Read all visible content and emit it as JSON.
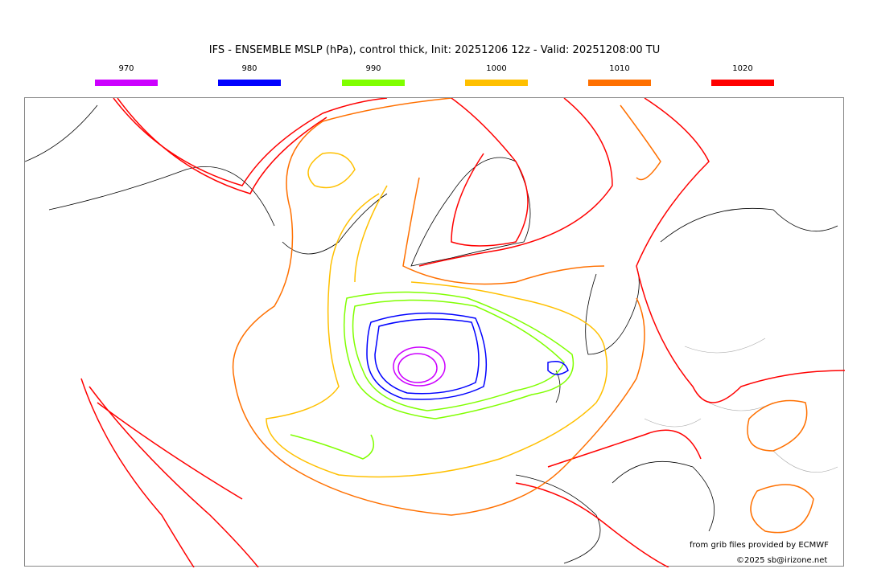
{
  "title": "IFS - ENSEMBLE MSLP (hPa), control thick, Init: 20251206 12z - Valid: 20251208:00 TU",
  "legend": [
    {
      "label": "970",
      "color": "#cc00ff"
    },
    {
      "label": "980",
      "color": "#0000ff"
    },
    {
      "label": "990",
      "color": "#80ff00"
    },
    {
      "label": "1000",
      "color": "#ffc000"
    },
    {
      "label": "1010",
      "color": "#ff7000"
    },
    {
      "label": "1020",
      "color": "#ff0000"
    }
  ],
  "credits": {
    "source": "from grib files provided by ECMWF",
    "copyright": "©2025 sb@irizone.net"
  }
}
